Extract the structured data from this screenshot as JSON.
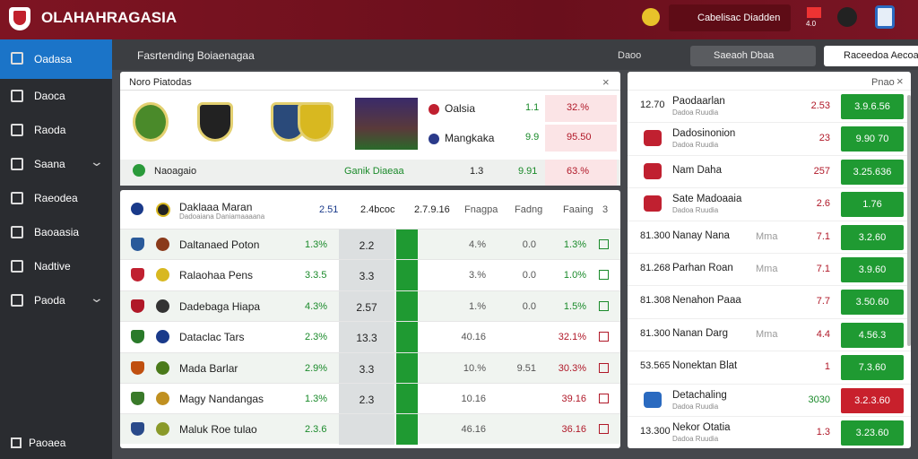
{
  "header": {
    "brand": "OLAHAHRAGASIA",
    "button": "Cabelisac Diadden",
    "badge": "4.0"
  },
  "sidebar": {
    "items": [
      "Oadasa",
      "Daoca",
      "Raoda",
      "Saana",
      "Raeodea",
      "Baoaasia",
      "Nadtive",
      "Paoda"
    ],
    "footer": "Paoaea"
  },
  "toolbar": {
    "title": "Fasrtending Boiaenagaa",
    "select": "Daoo",
    "search": "Saeaoh Dbaa",
    "button": "Raceedoa Aecoa"
  },
  "featured": {
    "title": "Noro Piatodas",
    "rows": [
      {
        "name": "Oalsia",
        "odd": "1.1",
        "pct": "32.%"
      },
      {
        "name": "Mangkaka",
        "odd": "9.9",
        "pct": "95.50"
      }
    ],
    "footer": {
      "name": "Naoagaio",
      "label": "Ganik Diaeaa",
      "odd": "1.3",
      "value": "9.91",
      "pct": "63.%"
    }
  },
  "matches": {
    "header": {
      "name": "Daklaaa Maran",
      "sub": "Dadoaiana Daniamaaaana",
      "odd": "2.51",
      "a": "2.4bcoc",
      "b": "2.7.9.16",
      "cols": [
        "Fnagpa",
        "Fadng",
        "Faaing",
        "3"
      ]
    },
    "rows": [
      {
        "name": "Daltanaed Poton",
        "odd": "1.3%",
        "mid": "2.2",
        "c1": "4.%",
        "c2": "0.0",
        "c3": "1.3%"
      },
      {
        "name": "Ralaohaa Pens",
        "odd": "3.3.5",
        "mid": "3.3",
        "c1": "3.%",
        "c2": "0.0",
        "c3": "1.0%"
      },
      {
        "name": "Dadebaga Hiapa",
        "odd": "4.3%",
        "mid": "2.57",
        "c1": "1.%",
        "c2": "0.0",
        "c3": "1.5%"
      },
      {
        "name": "Dataclac Tars",
        "odd": "2.3%",
        "mid": "13.3",
        "c1": "40.16",
        "c3": "32.1%"
      },
      {
        "name": "Mada Barlar",
        "odd": "2.9%",
        "mid": "3.3",
        "c1": "10.%",
        "c2": "9.51",
        "c3": "30.3%"
      },
      {
        "name": "Magy Nandangas",
        "odd": "1.3%",
        "mid": "2.3",
        "c1": "10.16",
        "c3": "39.16"
      },
      {
        "name": "Maluk Roe tulao",
        "odd": "2.3.6",
        "c1": "46.16",
        "c3": "36.16"
      }
    ]
  },
  "right": {
    "title": "Pnao",
    "rows": [
      {
        "time": "12.70",
        "name": "Paodaarlan",
        "sub": "Dadoa Ruudia",
        "odd": "2.53",
        "btn": "3.9.6.56"
      },
      {
        "name": "Dadosinonion",
        "sub": "Dadoa Ruudia",
        "odd": "23",
        "btn": "9.90 70"
      },
      {
        "name": "Nam Daha",
        "odd": "257",
        "btn": "3.25.636"
      },
      {
        "name": "Sate Madoaaia",
        "sub": "Dadoa Ruudia",
        "odd": "2.6",
        "btn": "1.76"
      },
      {
        "time": "81.300",
        "name": "Nanay Nana",
        "extra": "Mma",
        "odd": "7.1",
        "btn": "3.2.60"
      },
      {
        "time": "81.268",
        "name": "Parhan Roan",
        "extra": "Mma",
        "odd": "7.1",
        "btn": "3.9.60"
      },
      {
        "time": "81.308",
        "name": "Nenahon Paaa",
        "odd": "7.7",
        "btn": "3.50.60"
      },
      {
        "time": "81.300",
        "name": "Nanan Darg",
        "extra": "Mma",
        "odd": "4.4",
        "btn": "4.56.3"
      },
      {
        "time": "53.565",
        "name": "Nonektan Blat",
        "odd": "1",
        "btn": "7.3.60"
      },
      {
        "name": "Detachaling",
        "sub": "Dadoa Ruudia",
        "odd": "3030",
        "btn": "3.2.3.60",
        "alert": true
      },
      {
        "time": "13.300",
        "name": "Nekor Otatia",
        "sub": "Dadoa Ruudia",
        "odd": "1.3",
        "btn": "3.23.60"
      }
    ]
  }
}
